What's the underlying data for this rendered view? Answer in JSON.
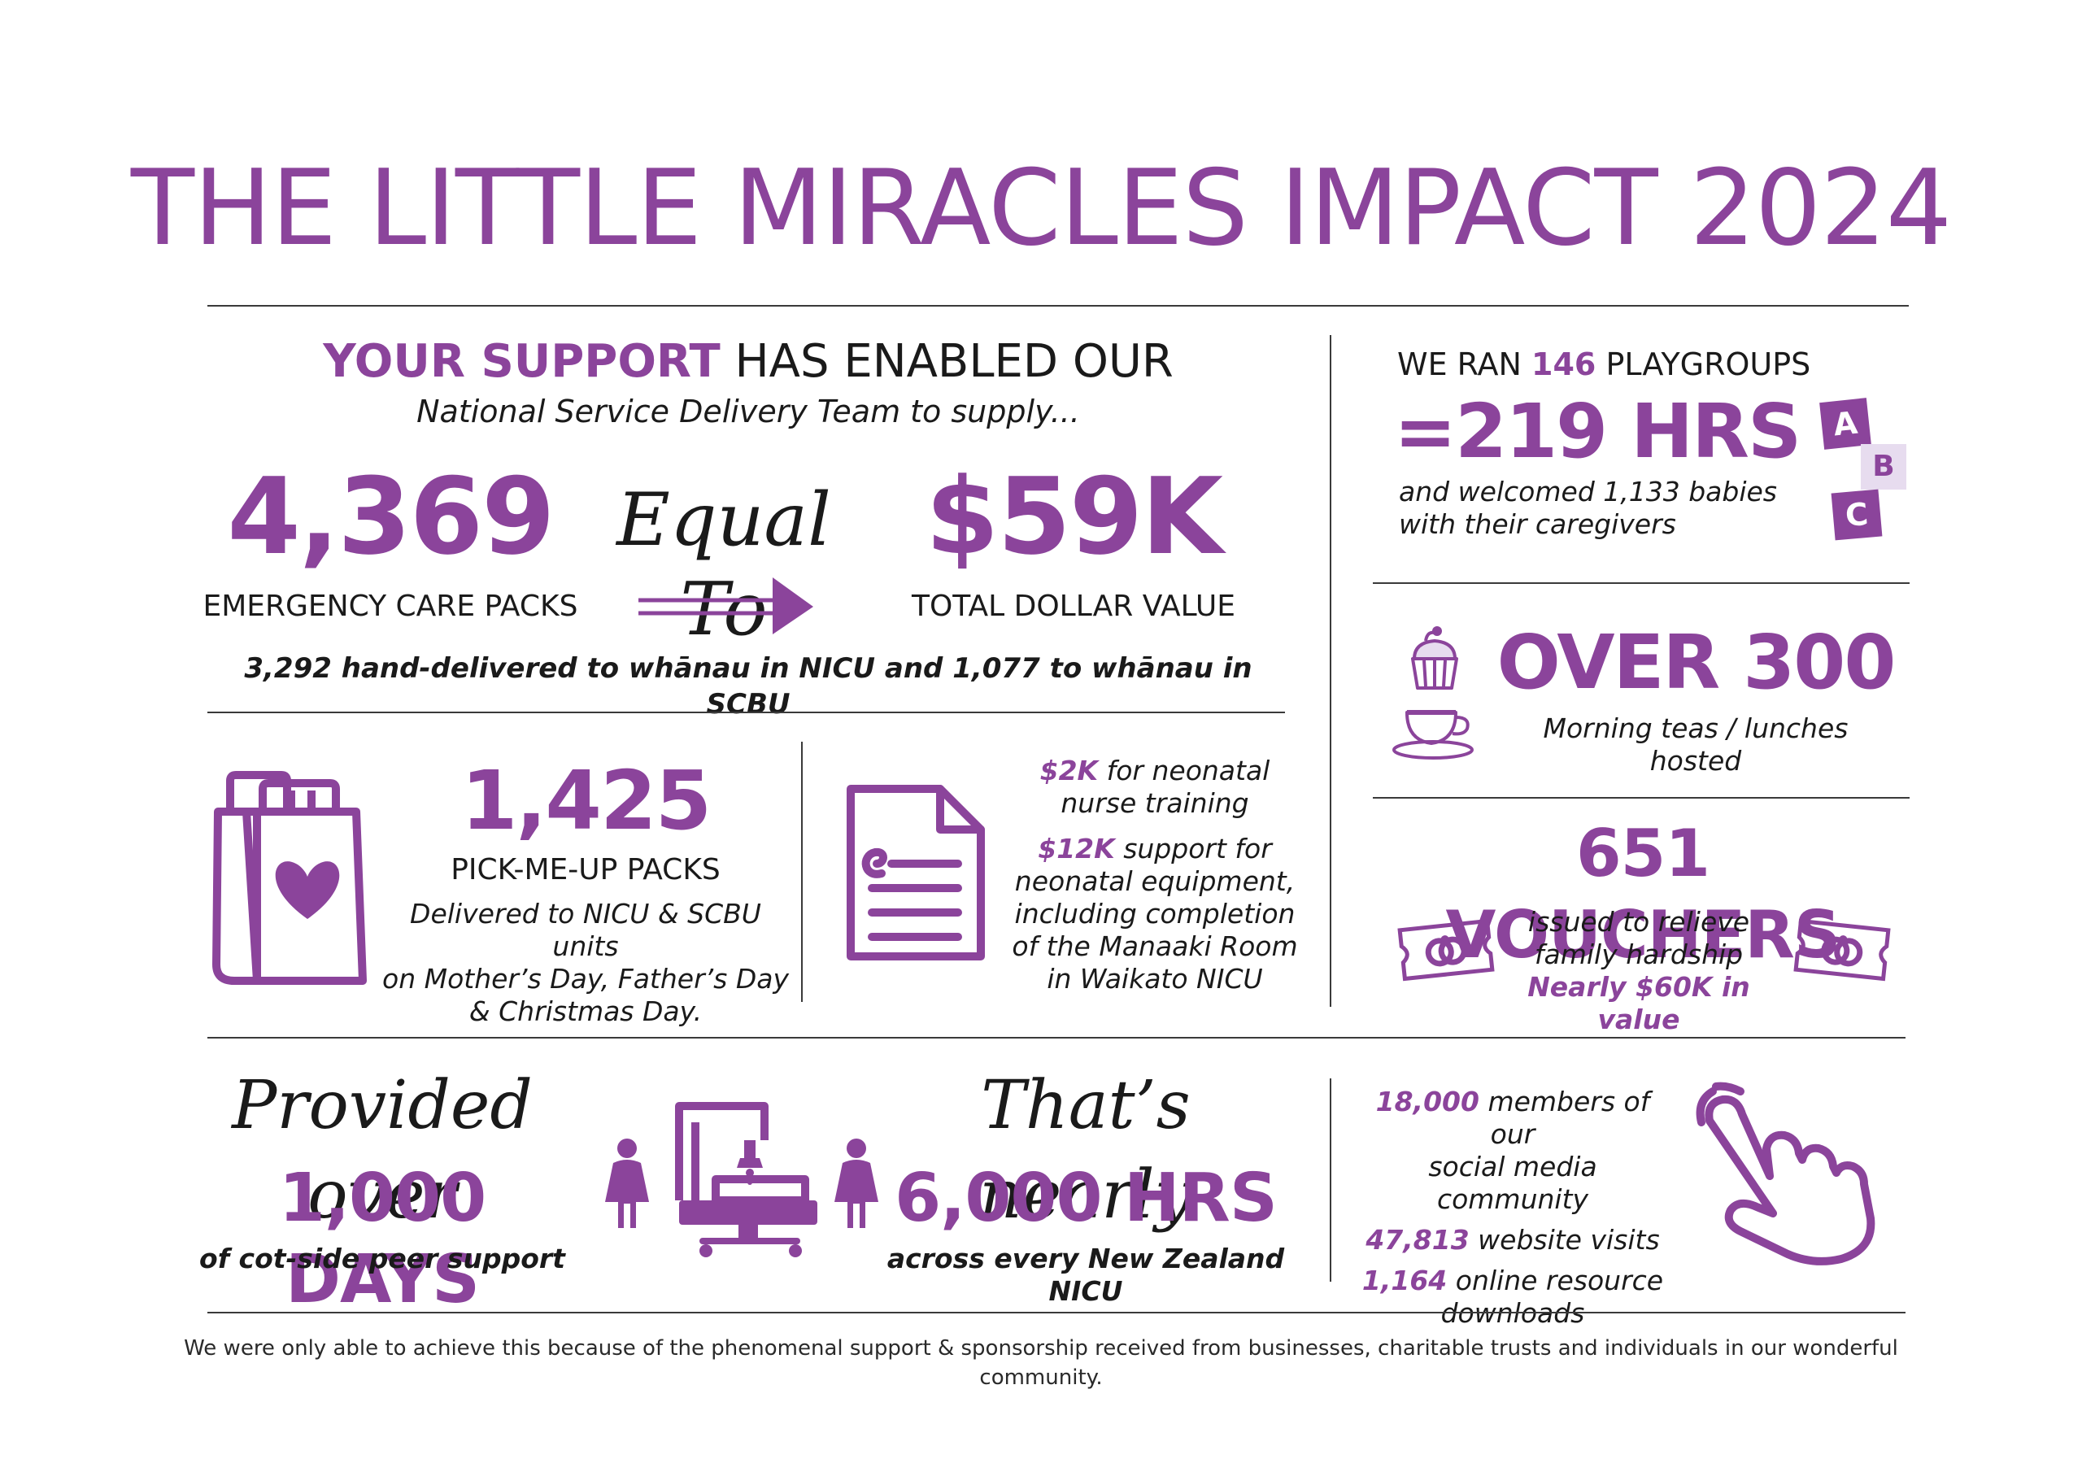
{
  "title": "THE LITTLE MIRACLES IMPACT 2024",
  "support": {
    "lead_bold": "YOUR SUPPORT",
    "lead_rest": " HAS ENABLED OUR",
    "subline": "National Service Delivery Team to supply...",
    "packs_value": "4,369",
    "packs_label": "EMERGENCY CARE PACKS",
    "equal_script": "Equal To",
    "dollar_value": "$59K",
    "dollar_label": "TOTAL DOLLAR VALUE",
    "delivered_note": "3,292 hand-delivered to whānau in NICU and 1,077 to whānau in SCBU"
  },
  "pickme": {
    "value": "1,425",
    "label": "PICK-ME-UP PACKS",
    "note_1": "Delivered to NICU & SCBU units",
    "note_2": "on Mother’s Day, Father’s Day",
    "note_3": "& Christmas Day."
  },
  "funding": {
    "amount_1": "$2K",
    "text_1a": " for neonatal",
    "text_1b": "nurse training",
    "amount_2": "$12K",
    "text_2a": " support for",
    "text_2b": "neonatal equipment,",
    "text_2c": "including completion",
    "text_2d": "of the Manaaki Room",
    "text_2e": "in Waikato NICU"
  },
  "playgroups": {
    "lead": "WE RAN ",
    "count": "146",
    "rest": " PLAYGROUPS",
    "hours": "=219 HRS",
    "note_1": "and welcomed 1,133 babies",
    "note_2": "with their caregivers",
    "block_a": "A",
    "block_b": "B",
    "block_c": "C"
  },
  "teas": {
    "value": "OVER 300",
    "label": "Morning teas / lunches hosted"
  },
  "vouchers": {
    "value": "651 VOUCHERS",
    "note_1": "issued to relieve",
    "note_2": "family hardship",
    "note_3": "Nearly $60K in value"
  },
  "peer": {
    "script": "Provided over",
    "value": "1,000 DAYS",
    "label": "of cot-side peer support"
  },
  "hours": {
    "script": "That’s nearly",
    "value": "6,000 HRS",
    "label": "across every New Zealand NICU"
  },
  "online": {
    "members_value": "18,000",
    "members_text_a": " members of our",
    "members_text_b": "social media community",
    "visits_value": "47,813",
    "visits_text": " website visits",
    "downloads_value": "1,164",
    "downloads_text_a": " online resource",
    "downloads_text_b": "downloads"
  },
  "footer": "We were only able to achieve this because of the phenomenal support & sponsorship received from businesses, charitable trusts and individuals in our wonderful community.",
  "colors": {
    "accent": "#8b449b",
    "lavender": "#e7dcef",
    "rule": "#3a3a3a"
  }
}
